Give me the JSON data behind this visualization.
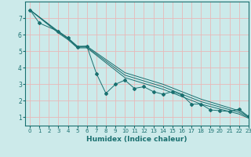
{
  "xlabel": "Humidex (Indice chaleur)",
  "background_color": "#cceaea",
  "grid_color": "#e8b8b8",
  "line_color": "#1a7070",
  "xlim": [
    -0.5,
    23
  ],
  "ylim": [
    0.5,
    8.0
  ],
  "xticks": [
    0,
    1,
    2,
    3,
    4,
    5,
    6,
    7,
    8,
    9,
    10,
    11,
    12,
    13,
    14,
    15,
    16,
    17,
    18,
    19,
    20,
    21,
    22,
    23
  ],
  "yticks": [
    1,
    2,
    3,
    4,
    5,
    6,
    7
  ],
  "series_jagged": {
    "x": [
      0,
      1,
      3,
      4,
      5,
      6,
      7,
      8,
      9,
      10,
      11,
      12,
      13,
      14,
      15,
      16,
      17,
      18,
      19,
      20,
      21,
      22,
      23
    ],
    "y": [
      7.5,
      6.7,
      6.2,
      5.8,
      5.25,
      5.3,
      3.65,
      2.45,
      3.0,
      3.25,
      2.75,
      2.85,
      2.55,
      2.4,
      2.55,
      2.35,
      1.8,
      1.8,
      1.45,
      1.4,
      1.35,
      1.5,
      1.05
    ]
  },
  "series_smooth": [
    {
      "x": [
        0,
        3,
        4,
        5,
        6,
        10,
        14,
        18,
        22,
        23
      ],
      "y": [
        7.5,
        6.2,
        5.8,
        5.3,
        5.3,
        3.7,
        3.0,
        2.1,
        1.4,
        1.05
      ]
    },
    {
      "x": [
        0,
        3,
        4,
        5,
        6,
        10,
        14,
        18,
        22,
        23
      ],
      "y": [
        7.5,
        6.15,
        5.75,
        5.25,
        5.25,
        3.55,
        2.85,
        1.95,
        1.3,
        1.0
      ]
    },
    {
      "x": [
        0,
        3,
        4,
        5,
        6,
        10,
        14,
        18,
        22,
        23
      ],
      "y": [
        7.5,
        6.1,
        5.7,
        5.2,
        5.2,
        3.4,
        2.7,
        1.8,
        1.2,
        0.95
      ]
    }
  ]
}
